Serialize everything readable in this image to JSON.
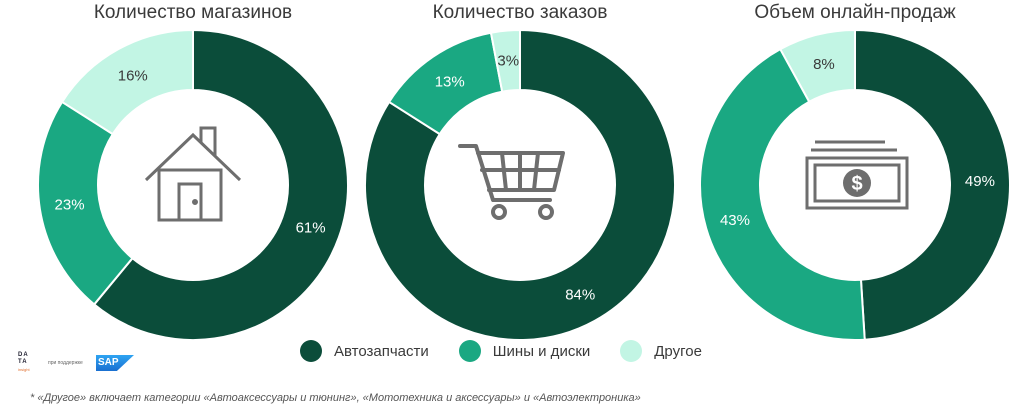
{
  "colors": {
    "autoparts": "#0b4d3a",
    "tires": "#1aa882",
    "other": "#c2f5e4",
    "icon": "#6e6e6e"
  },
  "chart_data": [
    {
      "type": "pie",
      "title": "Количество магазинов",
      "icon": "house-icon",
      "series": [
        {
          "name": "Автозапчасти",
          "value": 61
        },
        {
          "name": "Шины и диски",
          "value": 23
        },
        {
          "name": "Другое",
          "value": 16
        }
      ],
      "labels": [
        "61%",
        "23%",
        "16%"
      ]
    },
    {
      "type": "pie",
      "title": "Количество заказов",
      "icon": "shopping-cart-icon",
      "series": [
        {
          "name": "Автозапчасти",
          "value": 84
        },
        {
          "name": "Шины и диски",
          "value": 13
        },
        {
          "name": "Другое",
          "value": 3
        }
      ],
      "labels": [
        "84%",
        "13%",
        "3%"
      ]
    },
    {
      "type": "pie",
      "title": "Объем онлайн-продаж",
      "icon": "money-bills-icon",
      "series": [
        {
          "name": "Автозапчасти",
          "value": 49
        },
        {
          "name": "Шины и диски",
          "value": 43
        },
        {
          "name": "Другое",
          "value": 8
        }
      ],
      "labels": [
        "49%",
        "43%",
        "8%"
      ]
    }
  ],
  "legend": [
    {
      "label": "Автозапчасти",
      "color": "#0b4d3a"
    },
    {
      "label": "Шины и диски",
      "color": "#1aa882"
    },
    {
      "label": "Другое",
      "color": "#c2f5e4"
    }
  ],
  "branding": {
    "data_logo": "DA TA",
    "data_logo_sub": "insight",
    "support_text": "при поддержке",
    "sap_logo": "SAP"
  },
  "footnote": "* «Другое» включает категории  «Автоаксессуары и тюнинг», «Мототехника и аксессуары» и «Автоэлектроника»"
}
